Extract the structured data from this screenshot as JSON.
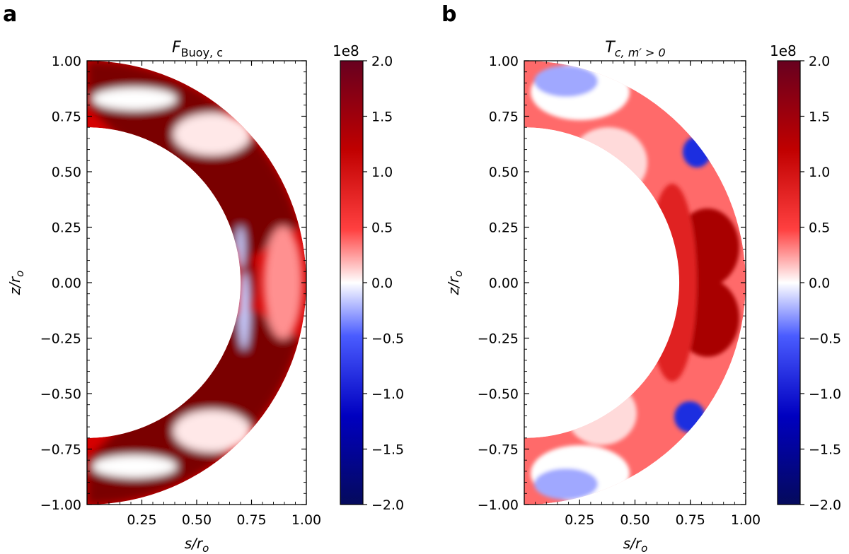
{
  "panels": [
    {
      "letter": "a",
      "title": "F",
      "title_sub": "Buoy, c",
      "xlabel": "s/r",
      "xlabel_sub": "o",
      "ylabel": "z/r",
      "ylabel_sub": "o",
      "colorbar_scale": "1e8"
    },
    {
      "letter": "b",
      "title": "T",
      "title_sub": "c, m′ > 0",
      "xlabel": "s/r",
      "xlabel_sub": "o",
      "ylabel": "z/r",
      "ylabel_sub": "o",
      "colorbar_scale": "1e8"
    }
  ],
  "colors": {
    "positive_max": "#67001f",
    "positive": "#e31a1c",
    "zero": "#ffffff",
    "negative": "#1a3be3",
    "negative_max": "#050a5c"
  },
  "chart_data": [
    {
      "type": "heatmap",
      "title": "F_{Buoy, c}",
      "xlabel": "s/r_o",
      "ylabel": "z/r_o",
      "xlim": [
        0,
        1.0
      ],
      "ylim": [
        -1.0,
        1.0
      ],
      "x_ticks": [
        "0.25",
        "0.50",
        "0.75",
        "1.00"
      ],
      "y_ticks": [
        "1.00",
        "0.75",
        "0.50",
        "0.25",
        "0.00",
        "−0.25",
        "−0.50",
        "−0.75",
        "−1.00"
      ],
      "domain": {
        "shape": "meridional half-annulus",
        "inner_radius": 0.7,
        "outer_radius": 1.0
      },
      "colorbar": {
        "min": -2.0,
        "max": 2.0,
        "scale": "1e8",
        "ticks": [
          "2.0",
          "1.5",
          "1.0",
          "0.5",
          "0.0",
          "−0.5",
          "−1.0",
          "−1.5",
          "−2.0"
        ],
        "colormap": "seismic"
      }
    },
    {
      "type": "heatmap",
      "title": "T_{c, m' > 0}",
      "xlabel": "s/r_o",
      "ylabel": "z/r_o",
      "xlim": [
        0,
        1.0
      ],
      "ylim": [
        -1.0,
        1.0
      ],
      "x_ticks": [
        "0.25",
        "0.50",
        "0.75",
        "1.00"
      ],
      "y_ticks": [
        "1.00",
        "0.75",
        "0.50",
        "0.25",
        "0.00",
        "−0.25",
        "−0.50",
        "−0.75",
        "−1.00"
      ],
      "domain": {
        "shape": "meridional half-annulus",
        "inner_radius": 0.7,
        "outer_radius": 1.0
      },
      "colorbar": {
        "min": -2.0,
        "max": 2.0,
        "scale": "1e8",
        "ticks": [
          "2.0",
          "1.5",
          "1.0",
          "0.5",
          "0.0",
          "−0.5",
          "−1.0",
          "−1.5",
          "−2.0"
        ],
        "colormap": "seismic"
      }
    }
  ]
}
